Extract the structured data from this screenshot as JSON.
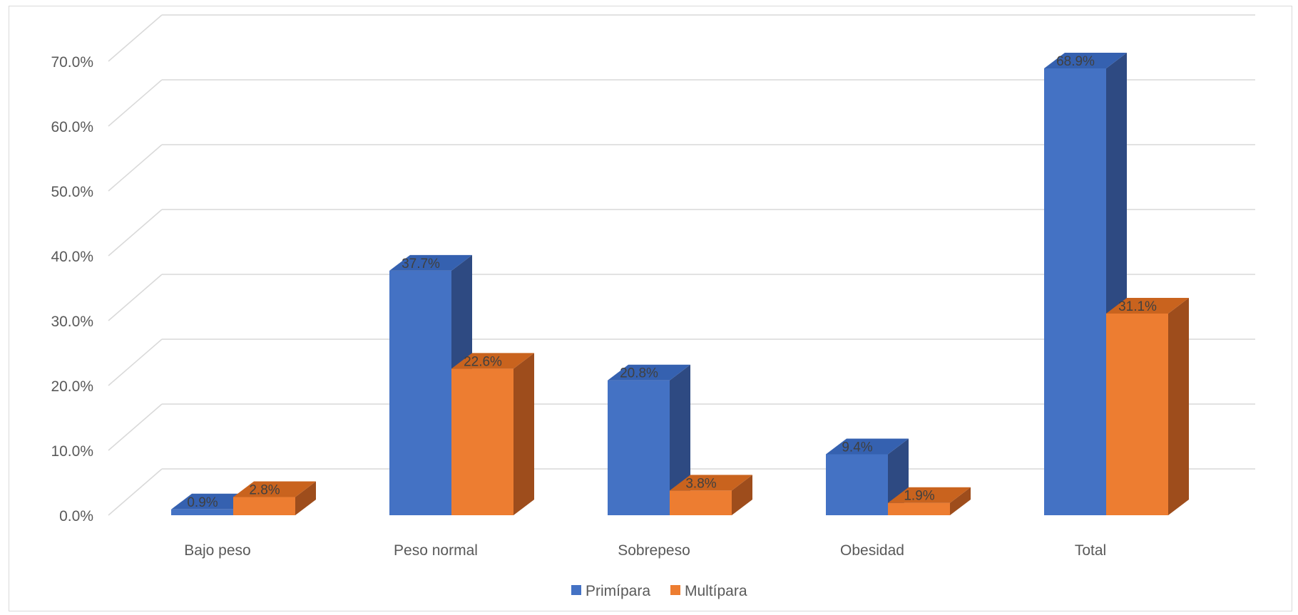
{
  "chart_data": {
    "type": "bar",
    "categories": [
      "Bajo peso",
      "Peso normal",
      "Sobrepeso",
      "Obesidad",
      "Total"
    ],
    "series": [
      {
        "name": "Primípara",
        "values": [
          0.9,
          37.7,
          20.8,
          9.4,
          68.9
        ],
        "labels": [
          "0.9%",
          "37.7%",
          "20.8%",
          "9.4%",
          "68.9%"
        ],
        "color": "#4472c4",
        "side_color": "#2e4a82",
        "top_color": "#3561b0"
      },
      {
        "name": "Multípara",
        "values": [
          2.8,
          22.6,
          3.8,
          1.9,
          31.1
        ],
        "labels": [
          "2.8%",
          "22.6%",
          "3.8%",
          "1.9%",
          "31.1%"
        ],
        "color": "#ed7d31",
        "side_color": "#9e4d1c",
        "top_color": "#c9631e"
      }
    ],
    "yaxis": {
      "ticks": [
        0,
        10,
        20,
        30,
        40,
        50,
        60,
        70
      ],
      "tick_labels": [
        "0.0%",
        "10.0%",
        "20.0%",
        "30.0%",
        "40.0%",
        "50.0%",
        "60.0%",
        "70.0%"
      ],
      "ylim": [
        0,
        75
      ]
    },
    "grid": true,
    "legend_position": "bottom",
    "style": "3d-clustered-column",
    "title": "",
    "xlabel": "",
    "ylabel": ""
  }
}
